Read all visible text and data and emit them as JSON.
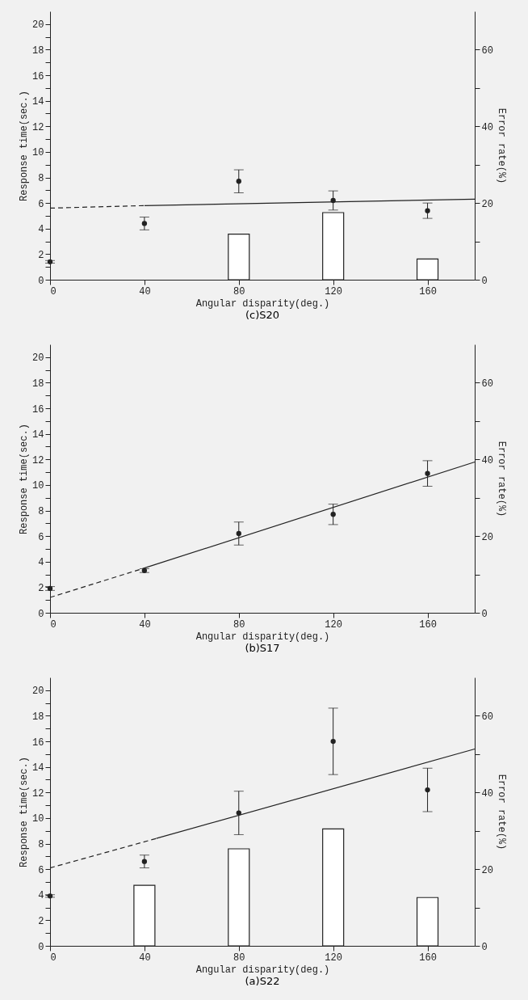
{
  "chart_data": [
    {
      "type": "scatter",
      "title": "(c)S20",
      "xlabel": "Angular disparity(deg.)",
      "ylabel": "Response time(sec.)",
      "y2label": "Error rate(%)",
      "xlim": [
        0,
        180
      ],
      "xticks": [
        0,
        40,
        80,
        120,
        160
      ],
      "ylim": [
        0,
        21
      ],
      "yticks": [
        0,
        {
          "value": 1,
          "label": null
        },
        2,
        {
          "value": 3,
          "label": null
        },
        4,
        {
          "value": 5,
          "label": null
        },
        6,
        {
          "value": 7,
          "label": null
        },
        8,
        {
          "value": 9,
          "label": null
        },
        10,
        {
          "value": 11,
          "label": null
        },
        12,
        {
          "value": 13,
          "label": null
        },
        14,
        {
          "value": 15,
          "label": null
        },
        16,
        {
          "value": 17,
          "label": null
        },
        18,
        {
          "value": 19,
          "label": null
        },
        20
      ],
      "y2lim": [
        0,
        70
      ],
      "y2ticks": [
        0,
        {
          "value": 10,
          "label": null
        },
        20,
        {
          "value": 30,
          "label": null
        },
        40,
        {
          "value": 50,
          "label": null
        },
        60
      ],
      "grid": false,
      "x": [
        0,
        40,
        80,
        120,
        160
      ],
      "series": [
        {
          "type": "bar",
          "axis": "y2",
          "color": "#222222",
          "values": [
            null,
            null,
            11.9,
            17.5,
            5.4
          ]
        },
        {
          "type": "line",
          "color": "#222222",
          "line_style": "dashed",
          "x": [
            0,
            40
          ],
          "values": [
            5.6,
            5.8
          ]
        },
        {
          "type": "line",
          "color": "#222222",
          "line_style": "solid",
          "x": [
            40,
            180
          ],
          "values": [
            5.8,
            6.3
          ]
        },
        {
          "color": "#222222",
          "marker": "circle",
          "values": [
            1.4,
            4.4,
            7.7,
            6.2,
            5.4
          ],
          "errors": [
            0.1,
            0.5,
            0.9,
            0.75,
            0.6
          ]
        }
      ]
    },
    {
      "type": "scatter",
      "title": "(b)S17",
      "xlabel": "Angular disparity(deg.)",
      "ylabel": "Response time(sec.)",
      "y2label": "Error rate(%)",
      "xlim": [
        0,
        180
      ],
      "xticks": [
        0,
        40,
        80,
        120,
        160
      ],
      "ylim": [
        0,
        21
      ],
      "yticks": [
        0,
        {
          "value": 1,
          "label": null
        },
        2,
        {
          "value": 3,
          "label": null
        },
        4,
        {
          "value": 5,
          "label": null
        },
        6,
        {
          "value": 7,
          "label": null
        },
        8,
        {
          "value": 9,
          "label": null
        },
        10,
        {
          "value": 11,
          "label": null
        },
        12,
        {
          "value": 13,
          "label": null
        },
        14,
        {
          "value": 15,
          "label": null
        },
        16,
        {
          "value": 17,
          "label": null
        },
        18,
        {
          "value": 19,
          "label": null
        },
        20
      ],
      "y2lim": [
        0,
        70
      ],
      "y2ticks": [
        0,
        {
          "value": 10,
          "label": null
        },
        20,
        {
          "value": 30,
          "label": null
        },
        40,
        {
          "value": 50,
          "label": null
        },
        60
      ],
      "grid": false,
      "x": [
        0,
        40,
        80,
        120,
        160
      ],
      "series": [
        {
          "type": "line",
          "color": "#222222",
          "line_style": "dashed",
          "x": [
            0,
            40
          ],
          "values": [
            1.2,
            3.5
          ]
        },
        {
          "type": "line",
          "color": "#222222",
          "line_style": "solid",
          "x": [
            40,
            180
          ],
          "values": [
            3.5,
            11.8
          ]
        },
        {
          "color": "#222222",
          "marker": "circle",
          "values": [
            1.9,
            3.3,
            6.2,
            7.7,
            10.9
          ],
          "errors": [
            0.15,
            0.15,
            0.9,
            0.8,
            1.0
          ]
        }
      ]
    },
    {
      "type": "scatter",
      "title": "(a)S22",
      "xlabel": "Angular disparity(deg.)",
      "ylabel": "Response time(sec.)",
      "y2label": "Error rate(%)",
      "xlim": [
        0,
        180
      ],
      "xticks": [
        0,
        40,
        80,
        120,
        160
      ],
      "ylim": [
        0,
        21
      ],
      "yticks": [
        0,
        {
          "value": 1,
          "label": null
        },
        2,
        {
          "value": 3,
          "label": null
        },
        4,
        {
          "value": 5,
          "label": null
        },
        6,
        {
          "value": 7,
          "label": null
        },
        8,
        {
          "value": 9,
          "label": null
        },
        10,
        {
          "value": 11,
          "label": null
        },
        12,
        {
          "value": 13,
          "label": null
        },
        14,
        {
          "value": 15,
          "label": null
        },
        16,
        {
          "value": 17,
          "label": null
        },
        18,
        {
          "value": 19,
          "label": null
        },
        20
      ],
      "y2lim": [
        0,
        70
      ],
      "y2ticks": [
        0,
        {
          "value": 10,
          "label": null
        },
        20,
        {
          "value": 30,
          "label": null
        },
        40,
        {
          "value": 50,
          "label": null
        },
        60
      ],
      "grid": false,
      "x": [
        0,
        40,
        80,
        120,
        160
      ],
      "series": [
        {
          "type": "bar",
          "axis": "y2",
          "color": "#222222",
          "values": [
            null,
            15.8,
            25.3,
            30.5,
            12.6
          ]
        },
        {
          "type": "line",
          "color": "#222222",
          "line_style": "dashed",
          "x": [
            0,
            45
          ],
          "values": [
            6.1,
            8.4
          ]
        },
        {
          "type": "line",
          "color": "#222222",
          "line_style": "solid",
          "x": [
            45,
            180
          ],
          "values": [
            8.4,
            15.4
          ]
        },
        {
          "color": "#222222",
          "marker": "circle",
          "values": [
            3.9,
            6.6,
            10.4,
            16.0,
            12.2
          ],
          "errors": [
            0.1,
            0.5,
            1.7,
            2.6,
            1.7
          ]
        }
      ]
    }
  ]
}
